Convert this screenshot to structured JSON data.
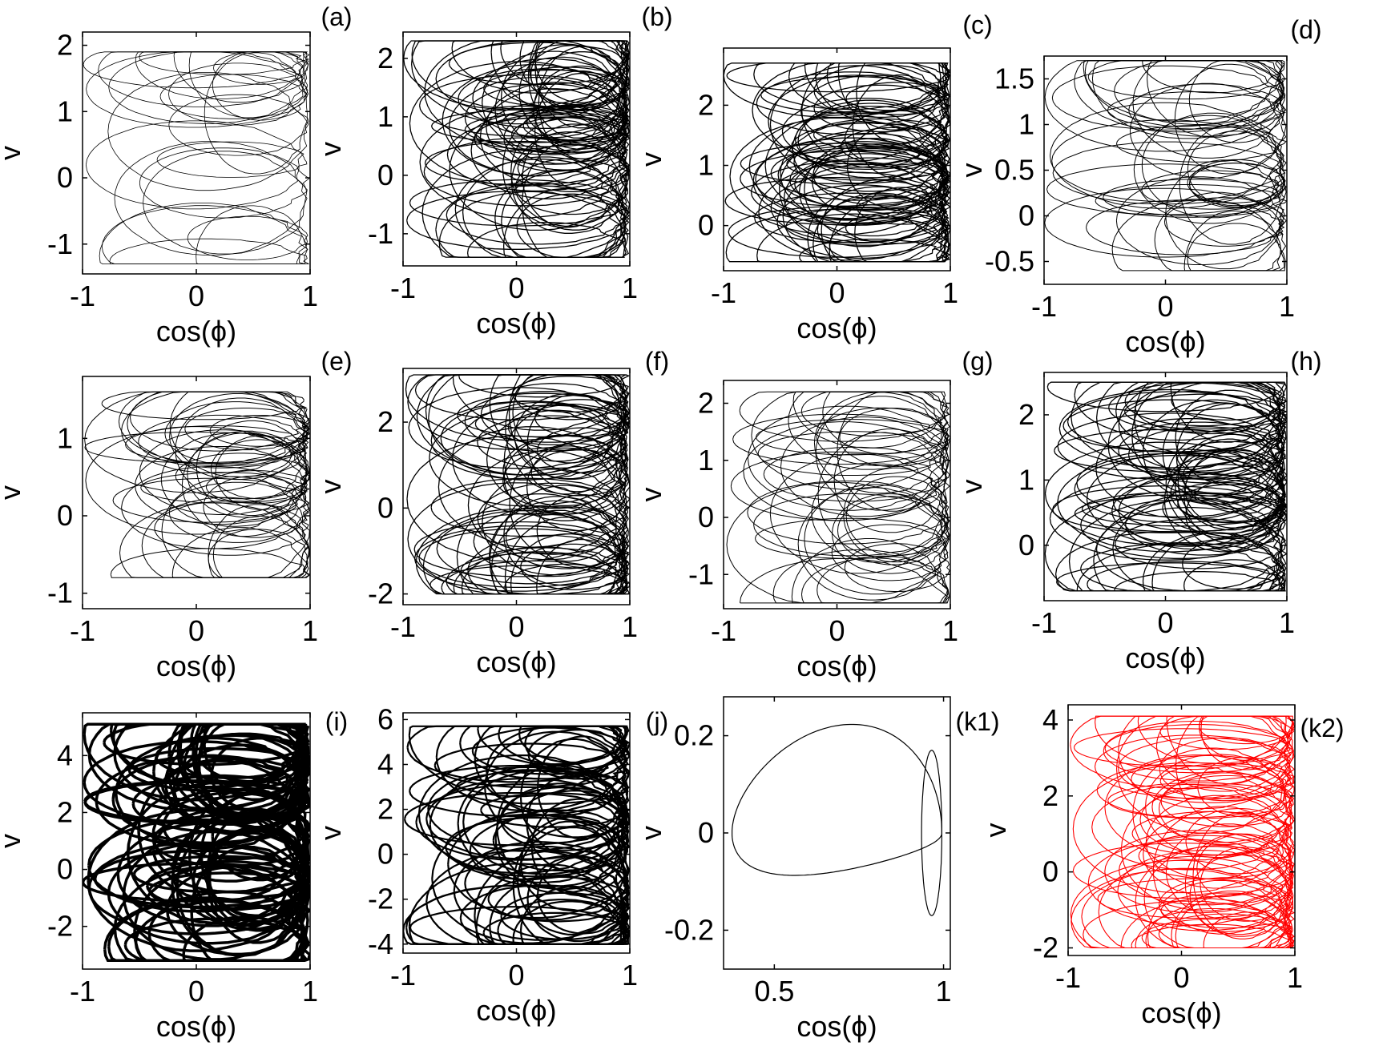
{
  "figure": {
    "description_labels": [
      "(a)",
      "(b)",
      "(c)",
      "(d)",
      "(e)",
      "(f)",
      "(g)",
      "(h)",
      "(i)",
      "(j)",
      "(k1)",
      "(k2)"
    ]
  },
  "chart_data": [
    {
      "id": "a",
      "type": "line",
      "panel_label": "(a)",
      "xlabel": "cos(ϕ)",
      "ylabel": "v",
      "xlim": [
        -1,
        1
      ],
      "ylim": [
        -1.45,
        2.2
      ],
      "xticks": [
        -1,
        0,
        1
      ],
      "xticklabels": [
        "-1",
        "0",
        "1"
      ],
      "yticks": [
        -1,
        0,
        1,
        2
      ],
      "yticklabels": [
        "-1",
        "0",
        "1",
        "2"
      ],
      "color": "#000000",
      "series": [
        {
          "name": "trajectory",
          "style": "thin",
          "xrange": [
            -1,
            1
          ],
          "yrange": [
            -1.3,
            1.9
          ]
        }
      ]
    },
    {
      "id": "b",
      "type": "line",
      "panel_label": "(b)",
      "xlabel": "cos(ϕ)",
      "ylabel": "v",
      "xlim": [
        -1,
        1
      ],
      "ylim": [
        -1.55,
        2.45
      ],
      "xticks": [
        -1,
        0,
        1
      ],
      "xticklabels": [
        "-1",
        "0",
        "1"
      ],
      "yticks": [
        -1,
        0,
        1,
        2
      ],
      "yticklabels": [
        "-1",
        "0",
        "1",
        "2"
      ],
      "color": "#000000",
      "series": [
        {
          "name": "trajectory",
          "style": "dense",
          "xrange": [
            -1,
            1
          ],
          "yrange": [
            -1.4,
            2.3
          ]
        }
      ]
    },
    {
      "id": "c",
      "type": "line",
      "panel_label": "(c)",
      "xlabel": "cos(ϕ)",
      "ylabel": "v",
      "xlim": [
        -1,
        1
      ],
      "ylim": [
        -0.75,
        2.95
      ],
      "xticks": [
        -1,
        0,
        1
      ],
      "xticklabels": [
        "-1",
        "0",
        "1"
      ],
      "yticks": [
        0,
        1,
        2
      ],
      "yticklabels": [
        "0",
        "1",
        "2"
      ],
      "color": "#000000",
      "series": [
        {
          "name": "trajectory",
          "style": "dense",
          "xrange": [
            -1,
            1
          ],
          "yrange": [
            -0.6,
            2.7
          ]
        }
      ]
    },
    {
      "id": "d",
      "type": "line",
      "panel_label": "(d)",
      "xlabel": "cos(ϕ)",
      "ylabel": "v",
      "xlim": [
        -1,
        1
      ],
      "ylim": [
        -0.75,
        1.75
      ],
      "xticks": [
        -1,
        0,
        1
      ],
      "xticklabels": [
        "-1",
        "0",
        "1"
      ],
      "yticks": [
        -0.5,
        0,
        0.5,
        1,
        1.5
      ],
      "yticklabels": [
        "-0.5",
        "0",
        "0.5",
        "1",
        "1.5"
      ],
      "color": "#000000",
      "series": [
        {
          "name": "trajectory",
          "style": "medium",
          "xrange": [
            -1,
            1
          ],
          "yrange": [
            -0.6,
            1.7
          ]
        }
      ]
    },
    {
      "id": "e",
      "type": "line",
      "panel_label": "(e)",
      "xlabel": "cos(ϕ)",
      "ylabel": "v",
      "xlim": [
        -1,
        1
      ],
      "ylim": [
        -1.2,
        1.8
      ],
      "xticks": [
        -1,
        0,
        1
      ],
      "xticklabels": [
        "-1",
        "0",
        "1"
      ],
      "yticks": [
        -1,
        0,
        1
      ],
      "yticklabels": [
        "-1",
        "0",
        "1"
      ],
      "color": "#000000",
      "series": [
        {
          "name": "trajectory",
          "style": "medium",
          "xrange": [
            -1,
            1
          ],
          "yrange": [
            -0.8,
            1.6
          ]
        }
      ]
    },
    {
      "id": "f",
      "type": "line",
      "panel_label": "(f)",
      "xlabel": "cos(ϕ)",
      "ylabel": "v",
      "xlim": [
        -1,
        1
      ],
      "ylim": [
        -2.25,
        3.25
      ],
      "xticks": [
        -1,
        0,
        1
      ],
      "xticklabels": [
        "-1",
        "0",
        "1"
      ],
      "yticks": [
        -2,
        0,
        2
      ],
      "yticklabels": [
        "-2",
        "0",
        "2"
      ],
      "color": "#000000",
      "series": [
        {
          "name": "trajectory",
          "style": "dense",
          "xrange": [
            -1,
            1
          ],
          "yrange": [
            -2.0,
            3.1
          ]
        }
      ]
    },
    {
      "id": "g",
      "type": "line",
      "panel_label": "(g)",
      "xlabel": "cos(ϕ)",
      "ylabel": "v",
      "xlim": [
        -1,
        1
      ],
      "ylim": [
        -1.6,
        2.4
      ],
      "xticks": [
        -1,
        0,
        1
      ],
      "xticklabels": [
        "-1",
        "0",
        "1"
      ],
      "yticks": [
        -1,
        0,
        1,
        2
      ],
      "yticklabels": [
        "-1",
        "0",
        "1",
        "2"
      ],
      "color": "#000000",
      "series": [
        {
          "name": "trajectory",
          "style": "medium",
          "xrange": [
            -1,
            1
          ],
          "yrange": [
            -1.5,
            2.2
          ]
        }
      ]
    },
    {
      "id": "h",
      "type": "line",
      "panel_label": "(h)",
      "xlabel": "cos(ϕ)",
      "ylabel": "v",
      "xlim": [
        -1,
        1
      ],
      "ylim": [
        -0.85,
        2.65
      ],
      "xticks": [
        -1,
        0,
        1
      ],
      "xticklabels": [
        "-1",
        "0",
        "1"
      ],
      "yticks": [
        0,
        1,
        2
      ],
      "yticklabels": [
        "0",
        "1",
        "2"
      ],
      "color": "#000000",
      "series": [
        {
          "name": "trajectory",
          "style": "dense",
          "xrange": [
            -1,
            1
          ],
          "yrange": [
            -0.7,
            2.5
          ]
        }
      ]
    },
    {
      "id": "i",
      "type": "line",
      "panel_label": "(i)",
      "xlabel": "cos(ϕ)",
      "ylabel": "v",
      "xlim": [
        -1,
        1
      ],
      "ylim": [
        -3.5,
        5.5
      ],
      "xticks": [
        -1,
        0,
        1
      ],
      "xticklabels": [
        "-1",
        "0",
        "1"
      ],
      "yticks": [
        -2,
        0,
        2,
        4
      ],
      "yticklabels": [
        "-2",
        "0",
        "2",
        "4"
      ],
      "color": "#000000",
      "series": [
        {
          "name": "trajectory",
          "style": "solid",
          "xrange": [
            -1,
            1
          ],
          "yrange": [
            -3.2,
            5.1
          ]
        }
      ]
    },
    {
      "id": "j",
      "type": "line",
      "panel_label": "(j)",
      "xlabel": "cos(ϕ)",
      "ylabel": "v",
      "xlim": [
        -1,
        1
      ],
      "ylim": [
        -4.4,
        6.3
      ],
      "xticks": [
        -1,
        0,
        1
      ],
      "xticklabels": [
        "-1",
        "0",
        "1"
      ],
      "yticks": [
        -4,
        -2,
        0,
        2,
        4,
        6
      ],
      "yticklabels": [
        "-4",
        "-2",
        "0",
        "2",
        "4",
        "6"
      ],
      "color": "#000000",
      "series": [
        {
          "name": "trajectory",
          "style": "bands",
          "xrange": [
            -1,
            1
          ],
          "yrange": [
            -4,
            5.7
          ]
        }
      ]
    },
    {
      "id": "k1",
      "type": "line",
      "panel_label": "(k1)",
      "xlabel": "cos(ϕ)",
      "ylabel": "v",
      "xlim": [
        0.35,
        1.02
      ],
      "ylim": [
        -0.28,
        0.28
      ],
      "xticks": [
        0.5,
        1
      ],
      "xticklabels": [
        "0.5",
        "1"
      ],
      "yticks": [
        -0.2,
        0,
        0.2
      ],
      "yticklabels": [
        "-0.2",
        "0",
        "0.2"
      ],
      "color": "#000000",
      "series": [
        {
          "name": "limit cycle",
          "style": "cycle",
          "xrange": [
            0.37,
            1.0
          ],
          "yrange": [
            -0.25,
            0.25
          ]
        }
      ]
    },
    {
      "id": "k2",
      "type": "line",
      "panel_label": "(k2)",
      "xlabel": "cos(ϕ)",
      "ylabel": "v",
      "xlim": [
        -1,
        1
      ],
      "ylim": [
        -2.2,
        4.4
      ],
      "xticks": [
        -1,
        0,
        1
      ],
      "xticklabels": [
        "-1",
        "0",
        "1"
      ],
      "yticks": [
        -2,
        0,
        2,
        4
      ],
      "yticklabels": [
        "-2",
        "0",
        "2",
        "4"
      ],
      "color": "#ff0000",
      "series": [
        {
          "name": "trajectory",
          "style": "dense-red",
          "xrange": [
            -1,
            1
          ],
          "yrange": [
            -2.0,
            4.1
          ]
        }
      ]
    }
  ]
}
